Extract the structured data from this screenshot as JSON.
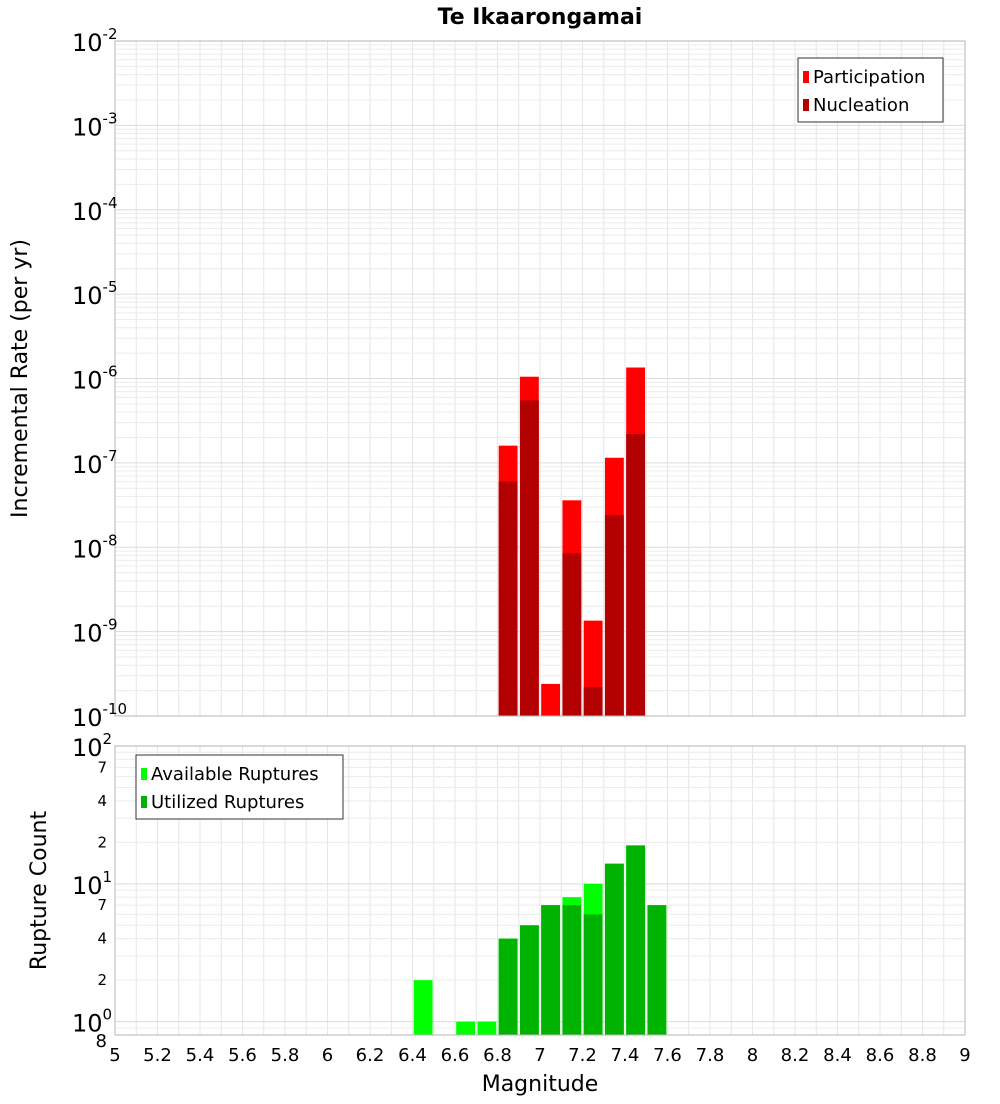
{
  "chart_data": [
    {
      "type": "bar",
      "title": "Te Ikaarongamai",
      "ylabel": "Incremental Rate (per yr)",
      "xlabel": "",
      "ylog": true,
      "ylim": [
        1e-10,
        0.01
      ],
      "xlim": [
        5,
        9
      ],
      "y_tick_exponents": [
        "-2",
        "-3",
        "-4",
        "-5",
        "-6",
        "-7",
        "-8",
        "-9",
        "-10"
      ],
      "y_tick_base": "10",
      "grid": true,
      "legend": {
        "position": "top-right",
        "entries": [
          {
            "label": "Participation",
            "color": "#ff0000"
          },
          {
            "label": "Nucleation",
            "color": "#b30000"
          }
        ]
      },
      "series": [
        {
          "name": "Participation",
          "color": "#ff0000",
          "x": [
            6.85,
            6.95,
            7.05,
            7.15,
            7.25,
            7.35,
            7.45
          ],
          "values": [
            1.6e-07,
            1.05e-06,
            2.4e-10,
            3.6e-08,
            1.35e-09,
            1.15e-07,
            1.35e-06
          ]
        },
        {
          "name": "Nucleation",
          "color": "#b30000",
          "x": [
            6.85,
            6.95,
            7.05,
            7.15,
            7.25,
            7.35,
            7.45
          ],
          "values": [
            6e-08,
            5.5e-07,
            null,
            8.5e-09,
            2.2e-10,
            2.4e-08,
            2.2e-07
          ]
        }
      ]
    },
    {
      "type": "bar",
      "title": "",
      "ylabel": "Rupture Count",
      "xlabel": "Magnitude",
      "ylog": true,
      "ylim": [
        0.8,
        100
      ],
      "xlim": [
        5,
        9
      ],
      "y_major_ticks": [
        {
          "base": "10",
          "exp": "2"
        },
        {
          "base": "10",
          "exp": "1"
        },
        {
          "base": "10",
          "exp": "0"
        }
      ],
      "y_minor_tick_labels": [
        {
          "value": 70,
          "label": "7"
        },
        {
          "value": 40,
          "label": "4"
        },
        {
          "value": 20,
          "label": "2"
        },
        {
          "value": 7,
          "label": "7"
        },
        {
          "value": 4,
          "label": "4"
        },
        {
          "value": 2,
          "label": "2"
        },
        {
          "value": 0.8,
          "label": "8"
        }
      ],
      "x_ticks": [
        "5",
        "5.2",
        "5.4",
        "5.6",
        "5.8",
        "6",
        "6.2",
        "6.4",
        "6.6",
        "6.8",
        "7",
        "7.2",
        "7.4",
        "7.6",
        "7.8",
        "8",
        "8.2",
        "8.4",
        "8.6",
        "8.8",
        "9"
      ],
      "grid": true,
      "legend": {
        "position": "top-left",
        "entries": [
          {
            "label": "Available Ruptures",
            "color": "#00ff00"
          },
          {
            "label": "Utilized Ruptures",
            "color": "#00b300"
          }
        ]
      },
      "series": [
        {
          "name": "Available Ruptures",
          "color": "#00ff00",
          "x": [
            6.45,
            6.65,
            6.75,
            6.85,
            6.95,
            7.05,
            7.15,
            7.25,
            7.35,
            7.45,
            7.55
          ],
          "values": [
            2,
            1,
            1,
            4,
            5,
            7,
            8,
            10,
            14,
            19,
            7
          ]
        },
        {
          "name": "Utilized Ruptures",
          "color": "#00b300",
          "x": [
            6.85,
            6.95,
            7.05,
            7.15,
            7.25,
            7.35,
            7.45,
            7.55
          ],
          "values": [
            4,
            5,
            7,
            7,
            6,
            14,
            19,
            7
          ]
        }
      ]
    }
  ]
}
